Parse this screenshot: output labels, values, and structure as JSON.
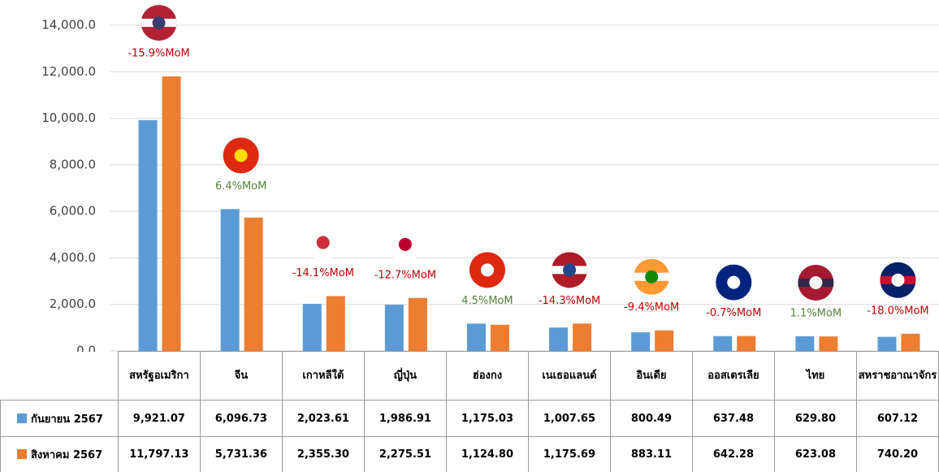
{
  "chart_data": {
    "type": "bar",
    "categories": [
      "สหรัฐอเมริกา",
      "จีน",
      "เกาหลีใต้",
      "ญี่ปุ่น",
      "ฮ่องกง",
      "เนเธอแลนด์",
      "อินเดีย",
      "ออสเตรเลีย",
      "ไทย",
      "สหราชอาณาจักร"
    ],
    "series": [
      {
        "name": "กันยายน 2567",
        "color": "#5b9bd5",
        "values": [
          9921.07,
          6096.73,
          2023.61,
          1986.91,
          1175.03,
          1007.65,
          800.49,
          637.48,
          629.8,
          607.12
        ],
        "value_labels": [
          "9,921.07",
          "6,096.73",
          "2,023.61",
          "1,986.91",
          "1,175.03",
          "1,007.65",
          "800.49",
          "637.48",
          "629.80",
          "607.12"
        ]
      },
      {
        "name": "สิงหาคม 2567",
        "color": "#ed7d31",
        "values": [
          11797.13,
          5731.36,
          2355.3,
          2275.51,
          1124.8,
          1175.69,
          883.11,
          642.28,
          623.08,
          740.2
        ],
        "value_labels": [
          "11,797.13",
          "5,731.36",
          "2,355.30",
          "2,275.51",
          "1,124.80",
          "1,175.69",
          "883.11",
          "642.28",
          "623.08",
          "740.20"
        ]
      }
    ],
    "annotations": [
      {
        "text": "-15.9%MoM",
        "color": "#c00000"
      },
      {
        "text": "6.4%MoM",
        "color": "#548235"
      },
      {
        "text": "-14.1%MoM",
        "color": "#c00000"
      },
      {
        "text": "-12.7%MoM",
        "color": "#c00000"
      },
      {
        "text": "4.5%MoM",
        "color": "#548235"
      },
      {
        "text": "-14.3%MoM",
        "color": "#c00000"
      },
      {
        "text": "-9.4%MoM",
        "color": "#c00000"
      },
      {
        "text": "-0.7%MoM",
        "color": "#c00000"
      },
      {
        "text": "1.1%MoM",
        "color": "#548235"
      },
      {
        "text": "-18.0%MoM",
        "color": "#c00000"
      }
    ],
    "ylim": [
      0,
      14000
    ],
    "yticks": [
      {
        "value": 0,
        "label": "0.0"
      },
      {
        "value": 2000,
        "label": "2,000.0"
      },
      {
        "value": 4000,
        "label": "4,000.0"
      },
      {
        "value": 6000,
        "label": "6,000.0"
      },
      {
        "value": 8000,
        "label": "8,000.0"
      },
      {
        "value": 10000,
        "label": "10,000.0"
      },
      {
        "value": 12000,
        "label": "12,000.0"
      },
      {
        "value": 14000,
        "label": "14,000.0"
      }
    ],
    "grid": true
  }
}
